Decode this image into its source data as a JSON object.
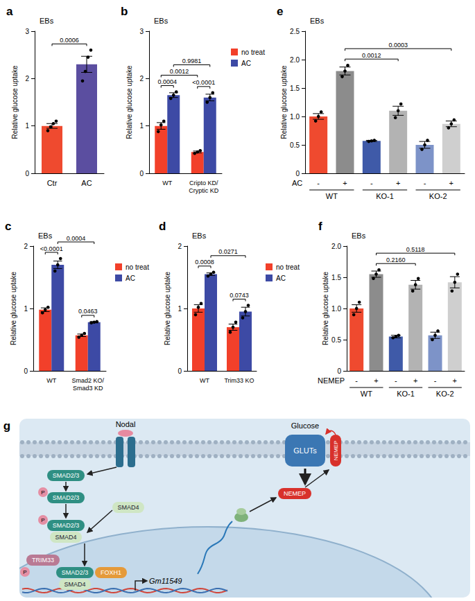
{
  "chart_data": [
    {
      "panel": "a",
      "title": "EBs",
      "type": "bar",
      "y_label": "Relative glucose uptake",
      "categories": [
        "Ctr",
        "AC"
      ],
      "values": [
        1.0,
        2.3
      ],
      "errors": [
        0.05,
        0.17
      ],
      "points": [
        [
          0.9,
          0.98,
          1.05,
          1.1
        ],
        [
          1.95,
          2.15,
          2.45,
          2.6
        ]
      ],
      "colors": [
        "#ef4a2f",
        "#5b4ea0"
      ],
      "ylim": [
        0,
        3
      ],
      "yticks": [
        0,
        1,
        2,
        3
      ],
      "grid": false,
      "comparisons": [
        {
          "bars": [
            0,
            1
          ],
          "label": "0.0006"
        }
      ]
    },
    {
      "panel": "b",
      "title": "EBs",
      "type": "bar",
      "y_label": "Relative glucose uptake",
      "categories": [
        "WT",
        "Cripto KD/Cryptic KD"
      ],
      "series": [
        {
          "name": "no treat",
          "color": "#f2402a",
          "values": [
            1.0,
            0.45
          ],
          "errors": [
            0.07,
            0.02
          ],
          "points": [
            [
              0.88,
              1.02,
              1.1
            ],
            [
              0.42,
              0.45,
              0.48
            ]
          ]
        },
        {
          "name": "AC",
          "color": "#3d4aa5",
          "values": [
            1.65,
            1.6
          ],
          "errors": [
            0.05,
            0.07
          ],
          "points": [
            [
              1.58,
              1.65,
              1.72
            ],
            [
              1.5,
              1.6,
              1.7
            ]
          ]
        }
      ],
      "ylim": [
        0,
        3
      ],
      "yticks": [
        0,
        1,
        2,
        3
      ],
      "grid": false,
      "legend": "right",
      "comparisons": [
        {
          "bars": [
            0,
            1
          ],
          "label": "0.0004"
        },
        {
          "bars": [
            2,
            3
          ],
          "label": "<0.0001"
        },
        {
          "bars": [
            0,
            2
          ],
          "label": "0.0012"
        },
        {
          "bars": [
            1,
            3
          ],
          "label": "0.9981"
        }
      ]
    },
    {
      "panel": "c",
      "title": "EBs",
      "type": "bar",
      "y_label": "Relative glucose uptake",
      "categories": [
        "WT",
        "Smad2 KO/Smad3 KD"
      ],
      "series": [
        {
          "name": "no treat",
          "color": "#f2402a",
          "values": [
            0.98,
            0.57
          ],
          "errors": [
            0.03,
            0.02
          ],
          "points": [
            [
              0.93,
              0.98,
              1.02
            ],
            [
              0.54,
              0.57,
              0.6
            ]
          ]
        },
        {
          "name": "AC",
          "color": "#3d4aa5",
          "values": [
            1.7,
            0.78
          ],
          "errors": [
            0.06,
            0.01
          ],
          "points": [
            [
              1.6,
              1.7,
              1.8
            ],
            [
              0.77,
              0.78,
              0.79
            ]
          ]
        }
      ],
      "ylim": [
        0,
        2
      ],
      "yticks": [
        0,
        1,
        2
      ],
      "grid": false,
      "legend": "right",
      "comparisons": [
        {
          "bars": [
            0,
            1
          ],
          "label": "<0.0001"
        },
        {
          "bars": [
            2,
            3
          ],
          "label": "0.0463"
        },
        {
          "bars": [
            1,
            3
          ],
          "label": "0.0004"
        }
      ]
    },
    {
      "panel": "d",
      "title": "EBs",
      "type": "bar",
      "y_label": "Relative glucose uptake",
      "categories": [
        "WT",
        "Trim33 KO"
      ],
      "series": [
        {
          "name": "no treat",
          "color": "#f2402a",
          "values": [
            1.0,
            0.7
          ],
          "errors": [
            0.06,
            0.05
          ],
          "points": [
            [
              0.9,
              1.02,
              1.08
            ],
            [
              0.62,
              0.7,
              0.78
            ]
          ]
        },
        {
          "name": "AC",
          "color": "#3d4aa5",
          "values": [
            1.55,
            0.95
          ],
          "errors": [
            0.02,
            0.07
          ],
          "points": [
            [
              1.52,
              1.55,
              1.58
            ],
            [
              0.85,
              0.95,
              1.05
            ]
          ]
        }
      ],
      "ylim": [
        0,
        2
      ],
      "yticks": [
        0,
        1,
        2
      ],
      "grid": false,
      "legend": "right",
      "comparisons": [
        {
          "bars": [
            0,
            1
          ],
          "label": "0.0008"
        },
        {
          "bars": [
            2,
            3
          ],
          "label": "0.0743"
        },
        {
          "bars": [
            1,
            3
          ],
          "label": "0.0271"
        }
      ]
    },
    {
      "panel": "e",
      "title": "EBs",
      "type": "bar",
      "y_label": "Relative glucose uptake",
      "categories": [
        "-",
        "+",
        "-",
        "+",
        "-",
        "+"
      ],
      "row_label": "AC",
      "groups": [
        "WT",
        "KO-1",
        "KO-2"
      ],
      "values": [
        1.0,
        1.8,
        0.57,
        1.1,
        0.5,
        0.87
      ],
      "errors": [
        0.05,
        0.07,
        0.01,
        0.08,
        0.06,
        0.05
      ],
      "points": [
        [
          0.92,
          1.0,
          1.08
        ],
        [
          1.7,
          1.8,
          1.9
        ],
        [
          0.56,
          0.57,
          0.58
        ],
        [
          0.98,
          1.1,
          1.22
        ],
        [
          0.42,
          0.5,
          0.58
        ],
        [
          0.8,
          0.87,
          0.94
        ]
      ],
      "colors": [
        "#ef4a2f",
        "#8c8c8c",
        "#3f5aa8",
        "#b3b3b3",
        "#7d93c8",
        "#cfcfcf"
      ],
      "ylim": [
        0,
        2.5
      ],
      "yticks": [
        0,
        0.5,
        {
          "value": 1,
          "label": "1.0"
        },
        1.5,
        {
          "value": 2,
          "label": "2.0"
        },
        2.5
      ],
      "grid": false,
      "comparisons": [
        {
          "bars": [
            1,
            3
          ],
          "label": "0.0012"
        },
        {
          "bars": [
            1,
            5
          ],
          "label": "0.0003"
        }
      ]
    },
    {
      "panel": "f",
      "title": "EBs",
      "type": "bar",
      "y_label": "Relative glucose uptake",
      "categories": [
        "-",
        "+",
        "-",
        "+",
        "-",
        "+"
      ],
      "row_label": "NEMEP",
      "groups": [
        "WT",
        "KO-1",
        "KO-2"
      ],
      "values": [
        1.0,
        1.55,
        0.55,
        1.38,
        0.57,
        1.42
      ],
      "errors": [
        0.06,
        0.05,
        0.02,
        0.07,
        0.05,
        0.09
      ],
      "points": [
        [
          0.9,
          1.0,
          1.1
        ],
        [
          1.48,
          1.55,
          1.62
        ],
        [
          0.53,
          0.55,
          0.57
        ],
        [
          1.28,
          1.38,
          1.48
        ],
        [
          0.5,
          0.57,
          0.64
        ],
        [
          1.28,
          1.42,
          1.55
        ]
      ],
      "colors": [
        "#ef4a2f",
        "#8c8c8c",
        "#3f5aa8",
        "#b3b3b3",
        "#7d93c8",
        "#cfcfcf"
      ],
      "ylim": [
        0,
        2
      ],
      "yticks": [
        0,
        0.5,
        {
          "value": 1,
          "label": "1.0"
        },
        1.5,
        {
          "value": 2,
          "label": "2.0"
        }
      ],
      "grid": false,
      "comparisons": [
        {
          "bars": [
            1,
            3
          ],
          "label": "0.2160"
        },
        {
          "bars": [
            1,
            5
          ],
          "label": "0.5118"
        }
      ]
    }
  ],
  "diagram": {
    "panel": "g",
    "labels": [
      "Nodal",
      "Glucose",
      "GLUTs",
      "NEMEP",
      "SMAD2/3",
      "P",
      "SMAD2/3",
      "SMAD4",
      "P",
      "SMAD2/3",
      "SMAD4",
      "P",
      "TRIM33",
      "SMAD2/3",
      "FOXH1",
      "SMAD4",
      "Gm11549",
      "NEMEP"
    ]
  }
}
